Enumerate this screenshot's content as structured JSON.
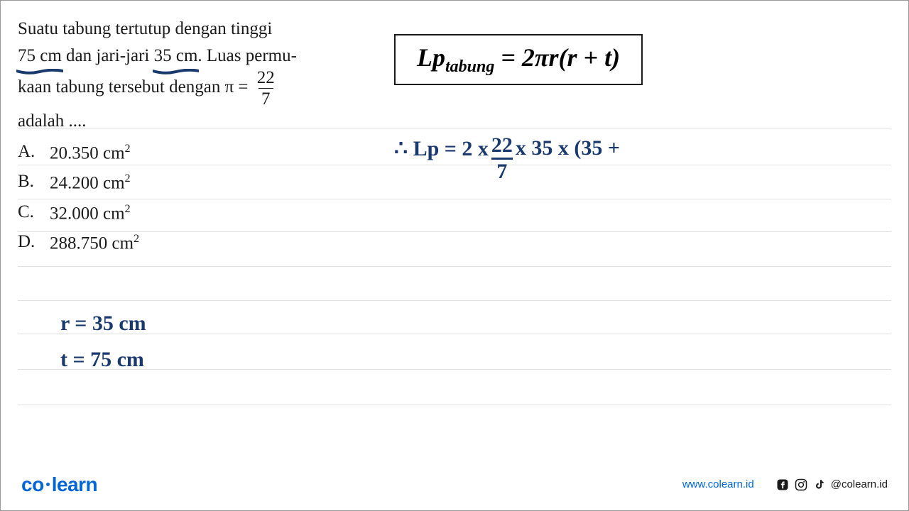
{
  "question": {
    "line1_pre": "Suatu tabung tertutup dengan tinggi",
    "underlined1": "75 cm",
    "mid1": " dan jari-jari ",
    "underlined2": "35 cm",
    "mid2": ". Luas permu-",
    "line3_pre": "kaan tabung tersebut dengan  π = ",
    "pi_num": "22",
    "pi_den": "7",
    "line4": "adalah ...."
  },
  "options": {
    "A": "20.350 cm",
    "B": "24.200 cm",
    "C": "32.000 cm",
    "D": "288.750 cm"
  },
  "formula": {
    "lp": "Lp",
    "sub": "tabung",
    "eq": "= 2πr(r + t)"
  },
  "given": {
    "r": "r = 35  cm",
    "t": "t = 75  cm"
  },
  "calc": {
    "prefix": "∴ Lp  = 2 x ",
    "frac_n": "22",
    "frac_d": "7",
    "mid": " x 35 x (35 +"
  },
  "footer": {
    "logo_a": "co",
    "logo_b": "learn",
    "website": "www.colearn.id",
    "handle": "@colearn.id"
  },
  "colors": {
    "ink": "#1a3a6e",
    "text": "#1a1a1a",
    "rule": "#e0e0e0",
    "brand": "#0066d6"
  },
  "ruled_line_tops": [
    180,
    232,
    280,
    326,
    375,
    423,
    470,
    520,
    570
  ]
}
